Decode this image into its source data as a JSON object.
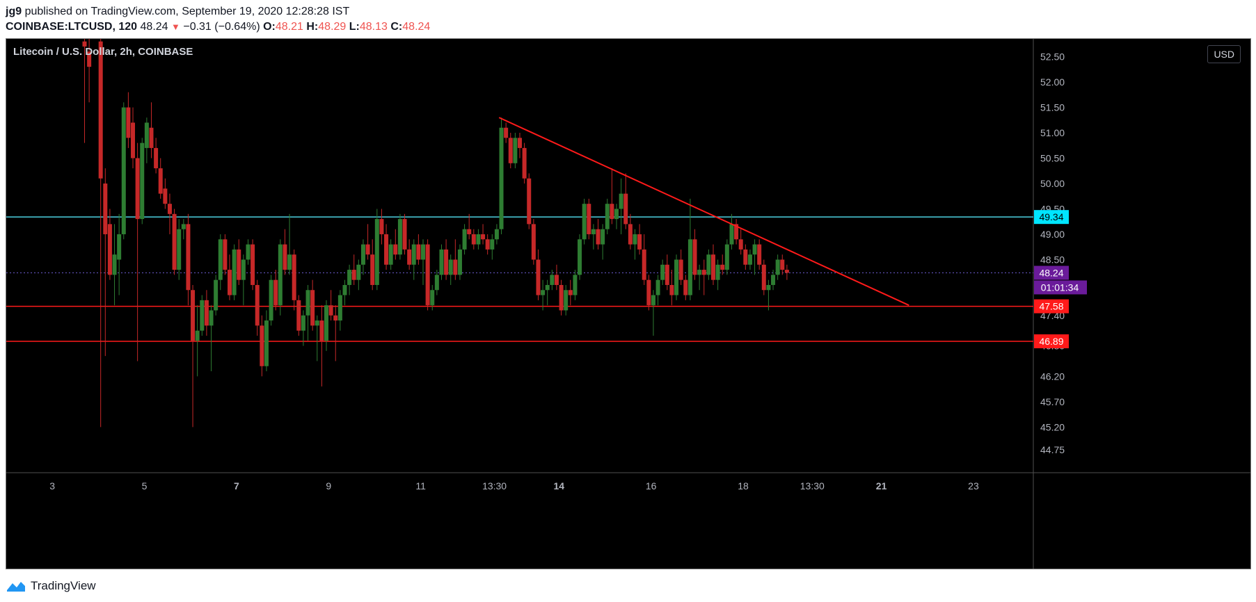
{
  "header": {
    "author": "jg9",
    "published_text": " published on TradingView.com, September 19, 2020 12:28:28 IST",
    "symbol": "COINBASE:LTCUSD, 120",
    "last": "48.24",
    "change": "−0.31 (−0.64%)",
    "open_label": "O:",
    "open": "48.21",
    "high_label": "H:",
    "high": "48.29",
    "low_label": "L:",
    "low": "48.13",
    "close_label": "C:",
    "close": "48.24"
  },
  "chart_title": "Litecoin / U.S. Dollar, 2h, COINBASE",
  "currency": "USD",
  "footer": {
    "brand": "TradingView"
  },
  "colors": {
    "up": "#26a69a",
    "down": "#ef5350",
    "candle_up": "#2e7d32",
    "candle_down": "#c62828",
    "support": "#ff1a1a",
    "resistance": "#4dd0e1",
    "trendline": "#ff1a1a",
    "price_label": "#6a1b9a"
  },
  "chart_data": {
    "type": "candlestick",
    "title": "Litecoin / U.S. Dollar, 2h, COINBASE",
    "ylim": [
      44.3,
      52.85
    ],
    "xlim": [
      2.0,
      24.3
    ],
    "y_ticks": [
      "52.50",
      "52.00",
      "51.50",
      "51.00",
      "50.50",
      "50.00",
      "49.50",
      "49.00",
      "48.50",
      "47.40",
      "46.80",
      "46.20",
      "45.70",
      "45.20",
      "44.75"
    ],
    "x_ticks": [
      {
        "label": "3",
        "x": 3.0,
        "bold": false
      },
      {
        "label": "5",
        "x": 5.0,
        "bold": false
      },
      {
        "label": "7",
        "x": 7.0,
        "bold": true
      },
      {
        "label": "9",
        "x": 9.0,
        "bold": false
      },
      {
        "label": "11",
        "x": 11.0,
        "bold": false
      },
      {
        "label": "13:30",
        "x": 12.6,
        "bold": false
      },
      {
        "label": "14",
        "x": 14.0,
        "bold": true
      },
      {
        "label": "16",
        "x": 16.0,
        "bold": false
      },
      {
        "label": "18",
        "x": 18.0,
        "bold": false
      },
      {
        "label": "13:30",
        "x": 19.5,
        "bold": false
      },
      {
        "label": "21",
        "x": 21.0,
        "bold": true
      },
      {
        "label": "23",
        "x": 23.0,
        "bold": false
      }
    ],
    "horizontal_levels": [
      {
        "name": "resistance",
        "value": 49.34,
        "label": "49.34",
        "color": "#4dd0e1",
        "label_bg": "#00e5ff",
        "label_color": "#000000"
      },
      {
        "name": "support-upper",
        "value": 47.58,
        "label": "47.58",
        "color": "#ff1a1a",
        "label_bg": "#ff1a1a",
        "label_color": "#ffffff"
      },
      {
        "name": "support-lower",
        "value": 46.89,
        "label": "46.89",
        "color": "#ff1a1a",
        "label_bg": "#ff1a1a",
        "label_color": "#ffffff"
      }
    ],
    "last_price": {
      "value": 48.24,
      "label": "48.24",
      "countdown": "01:01:34"
    },
    "trendline": {
      "x1": 12.7,
      "y1": 51.3,
      "x2": 21.6,
      "y2": 47.6
    },
    "candles": [
      {
        "x": 3.7,
        "o": 52.8,
        "h": 52.9,
        "l": 50.8,
        "c": 52.7
      },
      {
        "x": 3.8,
        "o": 52.6,
        "h": 52.9,
        "l": 51.6,
        "c": 52.3
      },
      {
        "x": 4.05,
        "o": 52.8,
        "h": 52.9,
        "l": 45.2,
        "c": 50.1
      },
      {
        "x": 4.15,
        "o": 50.0,
        "h": 50.3,
        "l": 46.6,
        "c": 49.0
      },
      {
        "x": 4.25,
        "o": 49.2,
        "h": 49.5,
        "l": 48.1,
        "c": 48.2
      },
      {
        "x": 4.35,
        "o": 48.2,
        "h": 49.2,
        "l": 47.6,
        "c": 48.6
      },
      {
        "x": 4.45,
        "o": 48.5,
        "h": 49.4,
        "l": 47.8,
        "c": 49.0
      },
      {
        "x": 4.55,
        "o": 49.0,
        "h": 51.6,
        "l": 48.9,
        "c": 51.5
      },
      {
        "x": 4.65,
        "o": 51.5,
        "h": 51.8,
        "l": 50.7,
        "c": 50.9
      },
      {
        "x": 4.75,
        "o": 51.2,
        "h": 51.5,
        "l": 50.3,
        "c": 50.5
      },
      {
        "x": 4.85,
        "o": 50.5,
        "h": 50.8,
        "l": 46.5,
        "c": 49.3
      },
      {
        "x": 4.95,
        "o": 49.3,
        "h": 50.9,
        "l": 49.2,
        "c": 50.8
      },
      {
        "x": 5.05,
        "o": 50.7,
        "h": 51.3,
        "l": 50.4,
        "c": 51.2
      },
      {
        "x": 5.15,
        "o": 51.1,
        "h": 51.6,
        "l": 50.5,
        "c": 50.7
      },
      {
        "x": 5.25,
        "o": 50.7,
        "h": 50.9,
        "l": 50.2,
        "c": 50.3
      },
      {
        "x": 5.35,
        "o": 50.3,
        "h": 50.5,
        "l": 49.7,
        "c": 49.8
      },
      {
        "x": 5.45,
        "o": 49.9,
        "h": 50.1,
        "l": 49.5,
        "c": 49.6
      },
      {
        "x": 5.55,
        "o": 49.6,
        "h": 49.8,
        "l": 49.0,
        "c": 49.4
      },
      {
        "x": 5.65,
        "o": 49.4,
        "h": 49.5,
        "l": 48.2,
        "c": 48.3
      },
      {
        "x": 5.75,
        "o": 48.3,
        "h": 49.3,
        "l": 48.1,
        "c": 49.1
      },
      {
        "x": 5.85,
        "o": 49.1,
        "h": 49.3,
        "l": 48.9,
        "c": 49.2
      },
      {
        "x": 5.95,
        "o": 49.2,
        "h": 49.4,
        "l": 47.6,
        "c": 47.9
      },
      {
        "x": 6.05,
        "o": 47.9,
        "h": 48.0,
        "l": 45.2,
        "c": 46.9
      },
      {
        "x": 6.15,
        "o": 46.9,
        "h": 47.6,
        "l": 46.2,
        "c": 47.1
      },
      {
        "x": 6.25,
        "o": 47.1,
        "h": 47.8,
        "l": 47.0,
        "c": 47.7
      },
      {
        "x": 6.35,
        "o": 47.7,
        "h": 47.9,
        "l": 47.0,
        "c": 47.2
      },
      {
        "x": 6.45,
        "o": 47.2,
        "h": 47.6,
        "l": 46.3,
        "c": 47.5
      },
      {
        "x": 6.55,
        "o": 47.5,
        "h": 48.2,
        "l": 47.4,
        "c": 48.1
      },
      {
        "x": 6.65,
        "o": 48.1,
        "h": 49.0,
        "l": 47.9,
        "c": 48.9
      },
      {
        "x": 6.75,
        "o": 48.9,
        "h": 49.0,
        "l": 48.2,
        "c": 48.3
      },
      {
        "x": 6.85,
        "o": 48.3,
        "h": 48.6,
        "l": 47.7,
        "c": 47.8
      },
      {
        "x": 6.95,
        "o": 47.8,
        "h": 48.8,
        "l": 47.7,
        "c": 48.7
      },
      {
        "x": 7.05,
        "o": 48.7,
        "h": 48.9,
        "l": 48.0,
        "c": 48.1
      },
      {
        "x": 7.15,
        "o": 48.1,
        "h": 48.6,
        "l": 47.6,
        "c": 48.5
      },
      {
        "x": 7.25,
        "o": 48.5,
        "h": 48.9,
        "l": 48.4,
        "c": 48.8
      },
      {
        "x": 7.35,
        "o": 48.8,
        "h": 48.9,
        "l": 47.9,
        "c": 48.0
      },
      {
        "x": 7.45,
        "o": 48.0,
        "h": 48.1,
        "l": 47.0,
        "c": 47.2
      },
      {
        "x": 7.55,
        "o": 47.2,
        "h": 47.4,
        "l": 46.2,
        "c": 46.4
      },
      {
        "x": 7.65,
        "o": 46.4,
        "h": 47.5,
        "l": 46.3,
        "c": 47.3
      },
      {
        "x": 7.75,
        "o": 47.3,
        "h": 48.2,
        "l": 47.2,
        "c": 48.1
      },
      {
        "x": 7.85,
        "o": 48.1,
        "h": 48.3,
        "l": 47.5,
        "c": 47.6
      },
      {
        "x": 7.95,
        "o": 47.6,
        "h": 48.9,
        "l": 47.4,
        "c": 48.8
      },
      {
        "x": 8.05,
        "o": 48.8,
        "h": 49.1,
        "l": 48.2,
        "c": 48.3
      },
      {
        "x": 8.15,
        "o": 48.3,
        "h": 49.4,
        "l": 48.2,
        "c": 48.6
      },
      {
        "x": 8.25,
        "o": 48.6,
        "h": 48.7,
        "l": 47.5,
        "c": 47.7
      },
      {
        "x": 8.35,
        "o": 47.7,
        "h": 47.8,
        "l": 47.0,
        "c": 47.1
      },
      {
        "x": 8.45,
        "o": 47.1,
        "h": 47.5,
        "l": 46.8,
        "c": 47.4
      },
      {
        "x": 8.55,
        "o": 47.4,
        "h": 48.0,
        "l": 46.9,
        "c": 47.9
      },
      {
        "x": 8.65,
        "o": 47.9,
        "h": 48.1,
        "l": 47.1,
        "c": 47.2
      },
      {
        "x": 8.75,
        "o": 47.2,
        "h": 47.4,
        "l": 46.5,
        "c": 47.3
      },
      {
        "x": 8.85,
        "o": 47.3,
        "h": 47.6,
        "l": 46.0,
        "c": 46.9
      },
      {
        "x": 8.95,
        "o": 46.9,
        "h": 47.7,
        "l": 46.7,
        "c": 47.6
      },
      {
        "x": 9.05,
        "o": 47.6,
        "h": 47.9,
        "l": 47.3,
        "c": 47.4
      },
      {
        "x": 9.15,
        "o": 47.4,
        "h": 47.6,
        "l": 46.5,
        "c": 47.3
      },
      {
        "x": 9.25,
        "o": 47.3,
        "h": 47.9,
        "l": 47.1,
        "c": 47.8
      },
      {
        "x": 9.35,
        "o": 47.8,
        "h": 48.1,
        "l": 47.6,
        "c": 48.0
      },
      {
        "x": 9.45,
        "o": 48.0,
        "h": 48.4,
        "l": 47.8,
        "c": 48.3
      },
      {
        "x": 9.55,
        "o": 48.3,
        "h": 48.6,
        "l": 48.0,
        "c": 48.1
      },
      {
        "x": 9.65,
        "o": 48.1,
        "h": 48.5,
        "l": 47.9,
        "c": 48.4
      },
      {
        "x": 9.75,
        "o": 48.4,
        "h": 48.9,
        "l": 48.2,
        "c": 48.8
      },
      {
        "x": 9.85,
        "o": 48.8,
        "h": 49.2,
        "l": 48.5,
        "c": 48.6
      },
      {
        "x": 9.95,
        "o": 48.6,
        "h": 48.9,
        "l": 47.9,
        "c": 48.0
      },
      {
        "x": 10.05,
        "o": 48.0,
        "h": 49.5,
        "l": 47.9,
        "c": 49.3
      },
      {
        "x": 10.15,
        "o": 49.3,
        "h": 49.5,
        "l": 48.8,
        "c": 49.0
      },
      {
        "x": 10.25,
        "o": 49.0,
        "h": 49.2,
        "l": 48.3,
        "c": 48.4
      },
      {
        "x": 10.35,
        "o": 48.4,
        "h": 48.9,
        "l": 48.3,
        "c": 48.8
      },
      {
        "x": 10.45,
        "o": 48.8,
        "h": 49.1,
        "l": 48.5,
        "c": 48.6
      },
      {
        "x": 10.55,
        "o": 48.6,
        "h": 49.4,
        "l": 48.5,
        "c": 49.3
      },
      {
        "x": 10.65,
        "o": 49.3,
        "h": 49.4,
        "l": 48.6,
        "c": 48.7
      },
      {
        "x": 10.75,
        "o": 48.7,
        "h": 48.9,
        "l": 48.3,
        "c": 48.4
      },
      {
        "x": 10.85,
        "o": 48.4,
        "h": 48.9,
        "l": 48.1,
        "c": 48.8
      },
      {
        "x": 10.95,
        "o": 48.8,
        "h": 49.0,
        "l": 48.4,
        "c": 48.5
      },
      {
        "x": 11.05,
        "o": 48.5,
        "h": 48.9,
        "l": 48.0,
        "c": 48.8
      },
      {
        "x": 11.15,
        "o": 48.8,
        "h": 48.9,
        "l": 47.5,
        "c": 47.6
      },
      {
        "x": 11.25,
        "o": 47.6,
        "h": 48.0,
        "l": 47.5,
        "c": 47.9
      },
      {
        "x": 11.35,
        "o": 47.9,
        "h": 48.3,
        "l": 47.8,
        "c": 48.2
      },
      {
        "x": 11.45,
        "o": 48.2,
        "h": 48.8,
        "l": 48.1,
        "c": 48.7
      },
      {
        "x": 11.55,
        "o": 48.7,
        "h": 48.9,
        "l": 48.1,
        "c": 48.2
      },
      {
        "x": 11.65,
        "o": 48.2,
        "h": 48.6,
        "l": 48.0,
        "c": 48.5
      },
      {
        "x": 11.75,
        "o": 48.5,
        "h": 48.9,
        "l": 48.1,
        "c": 48.2
      },
      {
        "x": 11.85,
        "o": 48.2,
        "h": 48.8,
        "l": 48.1,
        "c": 48.7
      },
      {
        "x": 11.95,
        "o": 48.7,
        "h": 49.2,
        "l": 48.6,
        "c": 49.1
      },
      {
        "x": 12.05,
        "o": 49.1,
        "h": 49.4,
        "l": 48.9,
        "c": 49.0
      },
      {
        "x": 12.15,
        "o": 49.0,
        "h": 49.1,
        "l": 48.7,
        "c": 48.8
      },
      {
        "x": 12.25,
        "o": 48.8,
        "h": 49.1,
        "l": 48.7,
        "c": 49.0
      },
      {
        "x": 12.35,
        "o": 49.0,
        "h": 49.2,
        "l": 48.8,
        "c": 48.9
      },
      {
        "x": 12.45,
        "o": 48.9,
        "h": 49.0,
        "l": 48.6,
        "c": 48.7
      },
      {
        "x": 12.55,
        "o": 48.7,
        "h": 49.0,
        "l": 48.5,
        "c": 48.9
      },
      {
        "x": 12.65,
        "o": 48.9,
        "h": 49.2,
        "l": 48.8,
        "c": 49.1
      },
      {
        "x": 12.75,
        "o": 49.1,
        "h": 51.3,
        "l": 49.0,
        "c": 51.1
      },
      {
        "x": 12.85,
        "o": 51.1,
        "h": 51.2,
        "l": 50.8,
        "c": 50.9
      },
      {
        "x": 12.95,
        "o": 50.9,
        "h": 51.0,
        "l": 50.3,
        "c": 50.4
      },
      {
        "x": 13.05,
        "o": 50.4,
        "h": 51.0,
        "l": 50.3,
        "c": 50.9
      },
      {
        "x": 13.15,
        "o": 50.9,
        "h": 51.0,
        "l": 50.5,
        "c": 50.7
      },
      {
        "x": 13.25,
        "o": 50.7,
        "h": 50.8,
        "l": 50.0,
        "c": 50.1
      },
      {
        "x": 13.35,
        "o": 50.1,
        "h": 50.2,
        "l": 49.1,
        "c": 49.2
      },
      {
        "x": 13.45,
        "o": 49.2,
        "h": 49.3,
        "l": 48.4,
        "c": 48.5
      },
      {
        "x": 13.55,
        "o": 48.5,
        "h": 48.7,
        "l": 47.7,
        "c": 47.8
      },
      {
        "x": 13.65,
        "o": 47.8,
        "h": 48.1,
        "l": 47.5,
        "c": 47.9
      },
      {
        "x": 13.75,
        "o": 47.9,
        "h": 48.1,
        "l": 47.6,
        "c": 48.0
      },
      {
        "x": 13.85,
        "o": 48.0,
        "h": 48.3,
        "l": 47.9,
        "c": 48.2
      },
      {
        "x": 13.95,
        "o": 48.2,
        "h": 48.4,
        "l": 47.9,
        "c": 48.0
      },
      {
        "x": 14.05,
        "o": 48.0,
        "h": 48.1,
        "l": 47.4,
        "c": 47.5
      },
      {
        "x": 14.15,
        "o": 47.5,
        "h": 48.0,
        "l": 47.4,
        "c": 47.9
      },
      {
        "x": 14.25,
        "o": 47.9,
        "h": 48.1,
        "l": 47.6,
        "c": 47.8
      },
      {
        "x": 14.35,
        "o": 47.8,
        "h": 48.3,
        "l": 47.7,
        "c": 48.2
      },
      {
        "x": 14.45,
        "o": 48.2,
        "h": 49.0,
        "l": 48.1,
        "c": 48.9
      },
      {
        "x": 14.55,
        "o": 48.9,
        "h": 49.7,
        "l": 48.8,
        "c": 49.6
      },
      {
        "x": 14.65,
        "o": 49.6,
        "h": 49.7,
        "l": 48.9,
        "c": 49.0
      },
      {
        "x": 14.75,
        "o": 49.0,
        "h": 49.2,
        "l": 48.7,
        "c": 49.1
      },
      {
        "x": 14.85,
        "o": 49.1,
        "h": 49.3,
        "l": 48.7,
        "c": 48.8
      },
      {
        "x": 14.95,
        "o": 48.8,
        "h": 49.2,
        "l": 48.5,
        "c": 49.1
      },
      {
        "x": 15.05,
        "o": 49.1,
        "h": 49.7,
        "l": 49.0,
        "c": 49.6
      },
      {
        "x": 15.15,
        "o": 49.6,
        "h": 50.3,
        "l": 49.2,
        "c": 49.3
      },
      {
        "x": 15.25,
        "o": 49.3,
        "h": 49.6,
        "l": 49.1,
        "c": 49.5
      },
      {
        "x": 15.35,
        "o": 49.5,
        "h": 50.1,
        "l": 49.0,
        "c": 49.8
      },
      {
        "x": 15.45,
        "o": 49.8,
        "h": 50.2,
        "l": 49.1,
        "c": 49.2
      },
      {
        "x": 15.55,
        "o": 49.2,
        "h": 49.4,
        "l": 48.7,
        "c": 48.8
      },
      {
        "x": 15.65,
        "o": 48.8,
        "h": 49.1,
        "l": 48.5,
        "c": 49.0
      },
      {
        "x": 15.75,
        "o": 49.0,
        "h": 49.2,
        "l": 48.6,
        "c": 48.7
      },
      {
        "x": 15.85,
        "o": 48.7,
        "h": 49.0,
        "l": 48.0,
        "c": 48.1
      },
      {
        "x": 15.95,
        "o": 48.1,
        "h": 48.2,
        "l": 47.5,
        "c": 47.6
      },
      {
        "x": 16.05,
        "o": 47.6,
        "h": 47.9,
        "l": 47.0,
        "c": 47.8
      },
      {
        "x": 16.15,
        "o": 47.8,
        "h": 48.2,
        "l": 47.6,
        "c": 48.1
      },
      {
        "x": 16.25,
        "o": 48.1,
        "h": 48.5,
        "l": 48.0,
        "c": 48.4
      },
      {
        "x": 16.35,
        "o": 48.4,
        "h": 48.6,
        "l": 47.9,
        "c": 48.0
      },
      {
        "x": 16.45,
        "o": 48.0,
        "h": 48.3,
        "l": 47.6,
        "c": 47.8
      },
      {
        "x": 16.55,
        "o": 47.8,
        "h": 48.6,
        "l": 47.7,
        "c": 48.5
      },
      {
        "x": 16.65,
        "o": 48.5,
        "h": 48.7,
        "l": 48.0,
        "c": 48.1
      },
      {
        "x": 16.75,
        "o": 48.1,
        "h": 48.2,
        "l": 47.7,
        "c": 47.8
      },
      {
        "x": 16.85,
        "o": 47.8,
        "h": 49.7,
        "l": 47.7,
        "c": 48.9
      },
      {
        "x": 16.95,
        "o": 48.9,
        "h": 49.1,
        "l": 48.1,
        "c": 48.2
      },
      {
        "x": 17.05,
        "o": 48.2,
        "h": 48.4,
        "l": 47.9,
        "c": 48.3
      },
      {
        "x": 17.15,
        "o": 48.3,
        "h": 48.5,
        "l": 47.8,
        "c": 48.2
      },
      {
        "x": 17.25,
        "o": 48.2,
        "h": 48.7,
        "l": 48.1,
        "c": 48.6
      },
      {
        "x": 17.35,
        "o": 48.6,
        "h": 48.8,
        "l": 48.0,
        "c": 48.1
      },
      {
        "x": 17.45,
        "o": 48.1,
        "h": 48.5,
        "l": 47.9,
        "c": 48.4
      },
      {
        "x": 17.55,
        "o": 48.4,
        "h": 48.6,
        "l": 48.2,
        "c": 48.3
      },
      {
        "x": 17.65,
        "o": 48.3,
        "h": 48.9,
        "l": 48.2,
        "c": 48.8
      },
      {
        "x": 17.75,
        "o": 48.8,
        "h": 49.4,
        "l": 48.7,
        "c": 49.2
      },
      {
        "x": 17.85,
        "o": 49.2,
        "h": 49.3,
        "l": 48.8,
        "c": 48.9
      },
      {
        "x": 17.95,
        "o": 48.9,
        "h": 49.1,
        "l": 48.6,
        "c": 48.7
      },
      {
        "x": 18.05,
        "o": 48.7,
        "h": 48.8,
        "l": 48.3,
        "c": 48.4
      },
      {
        "x": 18.15,
        "o": 48.4,
        "h": 48.7,
        "l": 48.3,
        "c": 48.6
      },
      {
        "x": 18.25,
        "o": 48.6,
        "h": 48.9,
        "l": 48.2,
        "c": 48.8
      },
      {
        "x": 18.35,
        "o": 48.8,
        "h": 48.9,
        "l": 48.3,
        "c": 48.4
      },
      {
        "x": 18.45,
        "o": 48.4,
        "h": 48.5,
        "l": 47.8,
        "c": 47.9
      },
      {
        "x": 18.55,
        "o": 47.9,
        "h": 48.1,
        "l": 47.5,
        "c": 48.0
      },
      {
        "x": 18.65,
        "o": 48.0,
        "h": 48.3,
        "l": 47.9,
        "c": 48.2
      },
      {
        "x": 18.75,
        "o": 48.2,
        "h": 48.6,
        "l": 48.1,
        "c": 48.5
      },
      {
        "x": 18.85,
        "o": 48.5,
        "h": 48.6,
        "l": 48.2,
        "c": 48.3
      },
      {
        "x": 18.95,
        "o": 48.3,
        "h": 48.4,
        "l": 48.1,
        "c": 48.24
      }
    ]
  }
}
